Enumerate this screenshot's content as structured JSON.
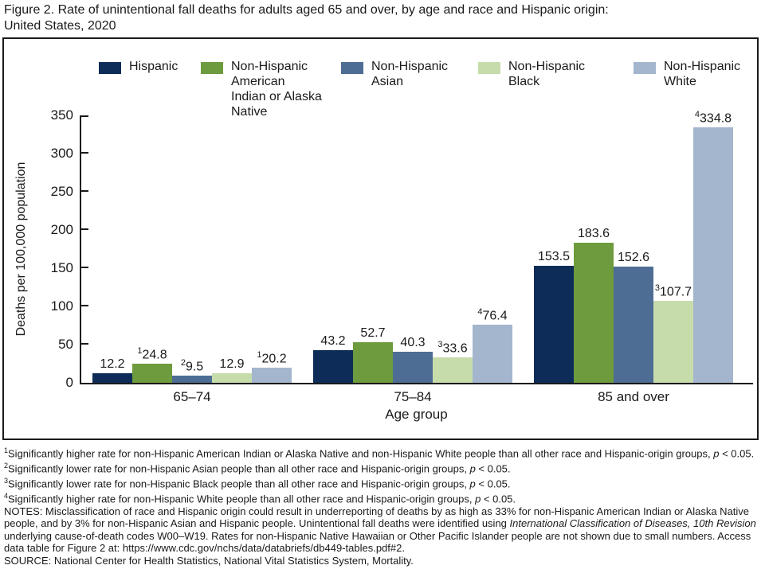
{
  "title": {
    "line1": "Figure 2. Rate of unintentional fall deaths for adults aged 65 and over, by age and race and Hispanic origin:",
    "line2": "United States, 2020"
  },
  "colors": {
    "hispanic": "#0e2c58",
    "aian": "#6d9b3d",
    "asian": "#4e6d94",
    "black": "#c7dcab",
    "white": "#a3b6ce",
    "axis": "#1a1a1a"
  },
  "chart_data": {
    "type": "bar",
    "title": "Figure 2. Rate of unintentional fall deaths for adults aged 65 and over, by age and race and Hispanic origin: United States, 2020",
    "categories": [
      "65–74",
      "75–84",
      "85 and over"
    ],
    "series": [
      {
        "name": "Hispanic",
        "color": "#0e2c58",
        "values": [
          12.2,
          43.2,
          153.5
        ],
        "superscripts": [
          "",
          "",
          ""
        ]
      },
      {
        "name": "Non-Hispanic American Indian or Alaska Native",
        "color": "#6d9b3d",
        "values": [
          24.8,
          52.7,
          183.6
        ],
        "superscripts": [
          "1",
          "",
          ""
        ]
      },
      {
        "name": "Non-Hispanic Asian",
        "color": "#4e6d94",
        "values": [
          9.5,
          40.3,
          152.6
        ],
        "superscripts": [
          "2",
          "",
          ""
        ]
      },
      {
        "name": "Non-Hispanic Black",
        "color": "#c7dcab",
        "values": [
          12.9,
          33.6,
          107.7
        ],
        "superscripts": [
          "",
          "3",
          "3"
        ]
      },
      {
        "name": "Non-Hispanic White",
        "color": "#a3b6ce",
        "values": [
          20.2,
          76.4,
          334.8
        ],
        "superscripts": [
          "1",
          "4",
          "4"
        ]
      }
    ],
    "xlabel": "Age group",
    "ylabel": "Deaths per 100,000 population",
    "ylim": [
      0,
      350
    ],
    "yticks": [
      0,
      50,
      100,
      150,
      200,
      250,
      300,
      350
    ],
    "grid": false,
    "legend_position": "top"
  },
  "footnotes": [
    {
      "segments": [
        {
          "t": "1",
          "sup": true
        },
        {
          "t": "Significantly higher rate for non-Hispanic American Indian or Alaska Native and non-Hispanic White people than all other race and Hispanic-origin groups, "
        },
        {
          "t": "p",
          "i": true
        },
        {
          "t": " < 0.05."
        }
      ]
    },
    {
      "segments": [
        {
          "t": "2",
          "sup": true
        },
        {
          "t": "Significantly lower rate for non-Hispanic Asian people than all other race and Hispanic-origin groups, "
        },
        {
          "t": "p",
          "i": true
        },
        {
          "t": " < 0.05."
        }
      ]
    },
    {
      "segments": [
        {
          "t": "3",
          "sup": true
        },
        {
          "t": "Significantly lower rate for non-Hispanic Black people than all other race and Hispanic-origin groups, "
        },
        {
          "t": "p",
          "i": true
        },
        {
          "t": " < 0.05."
        }
      ]
    },
    {
      "segments": [
        {
          "t": "4",
          "sup": true
        },
        {
          "t": "Significantly higher rate for non-Hispanic White people than all other race and Hispanic-origin groups, "
        },
        {
          "t": "p",
          "i": true
        },
        {
          "t": " < 0.05."
        }
      ]
    },
    {
      "segments": [
        {
          "t": "NOTES: Misclassification of race and Hispanic origin could result in underreporting of deaths by as high as 33% for non-Hispanic American Indian or Alaska Native people, and by 3% for non-Hispanic Asian and Hispanic people. Unintentional fall deaths were identified using "
        },
        {
          "t": "International Classification of Diseases, 10th Revision",
          "i": true
        },
        {
          "t": " underlying cause-of-death codes W00–W19. Rates for non-Hispanic Native Hawaiian or Other Pacific Islander people are not shown due to small numbers. Access data table for Figure 2 at: https://www.cdc.gov/nchs/data/databriefs/db449-tables.pdf#2."
        }
      ]
    },
    {
      "segments": [
        {
          "t": "SOURCE: National Center for Health Statistics, National Vital Statistics System, Mortality."
        }
      ]
    }
  ]
}
